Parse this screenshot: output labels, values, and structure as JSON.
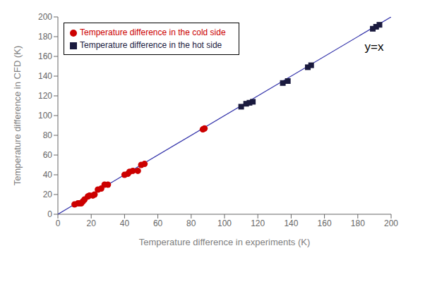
{
  "chart_data": {
    "type": "scatter",
    "xlabel": "Temperature difference in experiments (K)",
    "ylabel": "Temperature difference in CFD (K)",
    "xlim": [
      0,
      200
    ],
    "ylim": [
      0,
      200
    ],
    "xticks": [
      0,
      20,
      40,
      60,
      80,
      100,
      120,
      140,
      160,
      180,
      200
    ],
    "yticks": [
      0,
      20,
      40,
      60,
      80,
      100,
      120,
      140,
      160,
      180,
      200
    ],
    "grid": false,
    "legend": "upper left",
    "series": [
      {
        "type": "line",
        "color": "#3333AA",
        "line_style": "solid",
        "x": [
          0,
          200
        ],
        "values": [
          0,
          200
        ]
      },
      {
        "type": "scatter",
        "name": "Temperature difference in the hot side",
        "color": "#1a1a3e",
        "marker": "square",
        "x": [
          110,
          113,
          115,
          117,
          135,
          138,
          150,
          152,
          189,
          191,
          193
        ],
        "values": [
          109,
          112,
          113,
          114,
          133,
          135,
          149,
          151,
          188,
          190,
          192
        ]
      },
      {
        "type": "scatter",
        "name": "Temperature difference in the cold side",
        "color": "#CC0000",
        "marker": "circle",
        "x": [
          10,
          12,
          13,
          14,
          15,
          16,
          18,
          19,
          21,
          22,
          24,
          26,
          28,
          30,
          40,
          42,
          43,
          45,
          48,
          50,
          52,
          87,
          88
        ],
        "values": [
          10,
          11,
          11,
          11,
          13,
          15,
          18,
          19,
          19,
          20,
          25,
          26,
          30,
          30,
          40,
          41,
          43,
          44,
          44,
          50,
          51,
          86,
          87
        ]
      }
    ],
    "annotations": [
      {
        "text": "y=x",
        "x": 182,
        "y": 170
      }
    ]
  }
}
